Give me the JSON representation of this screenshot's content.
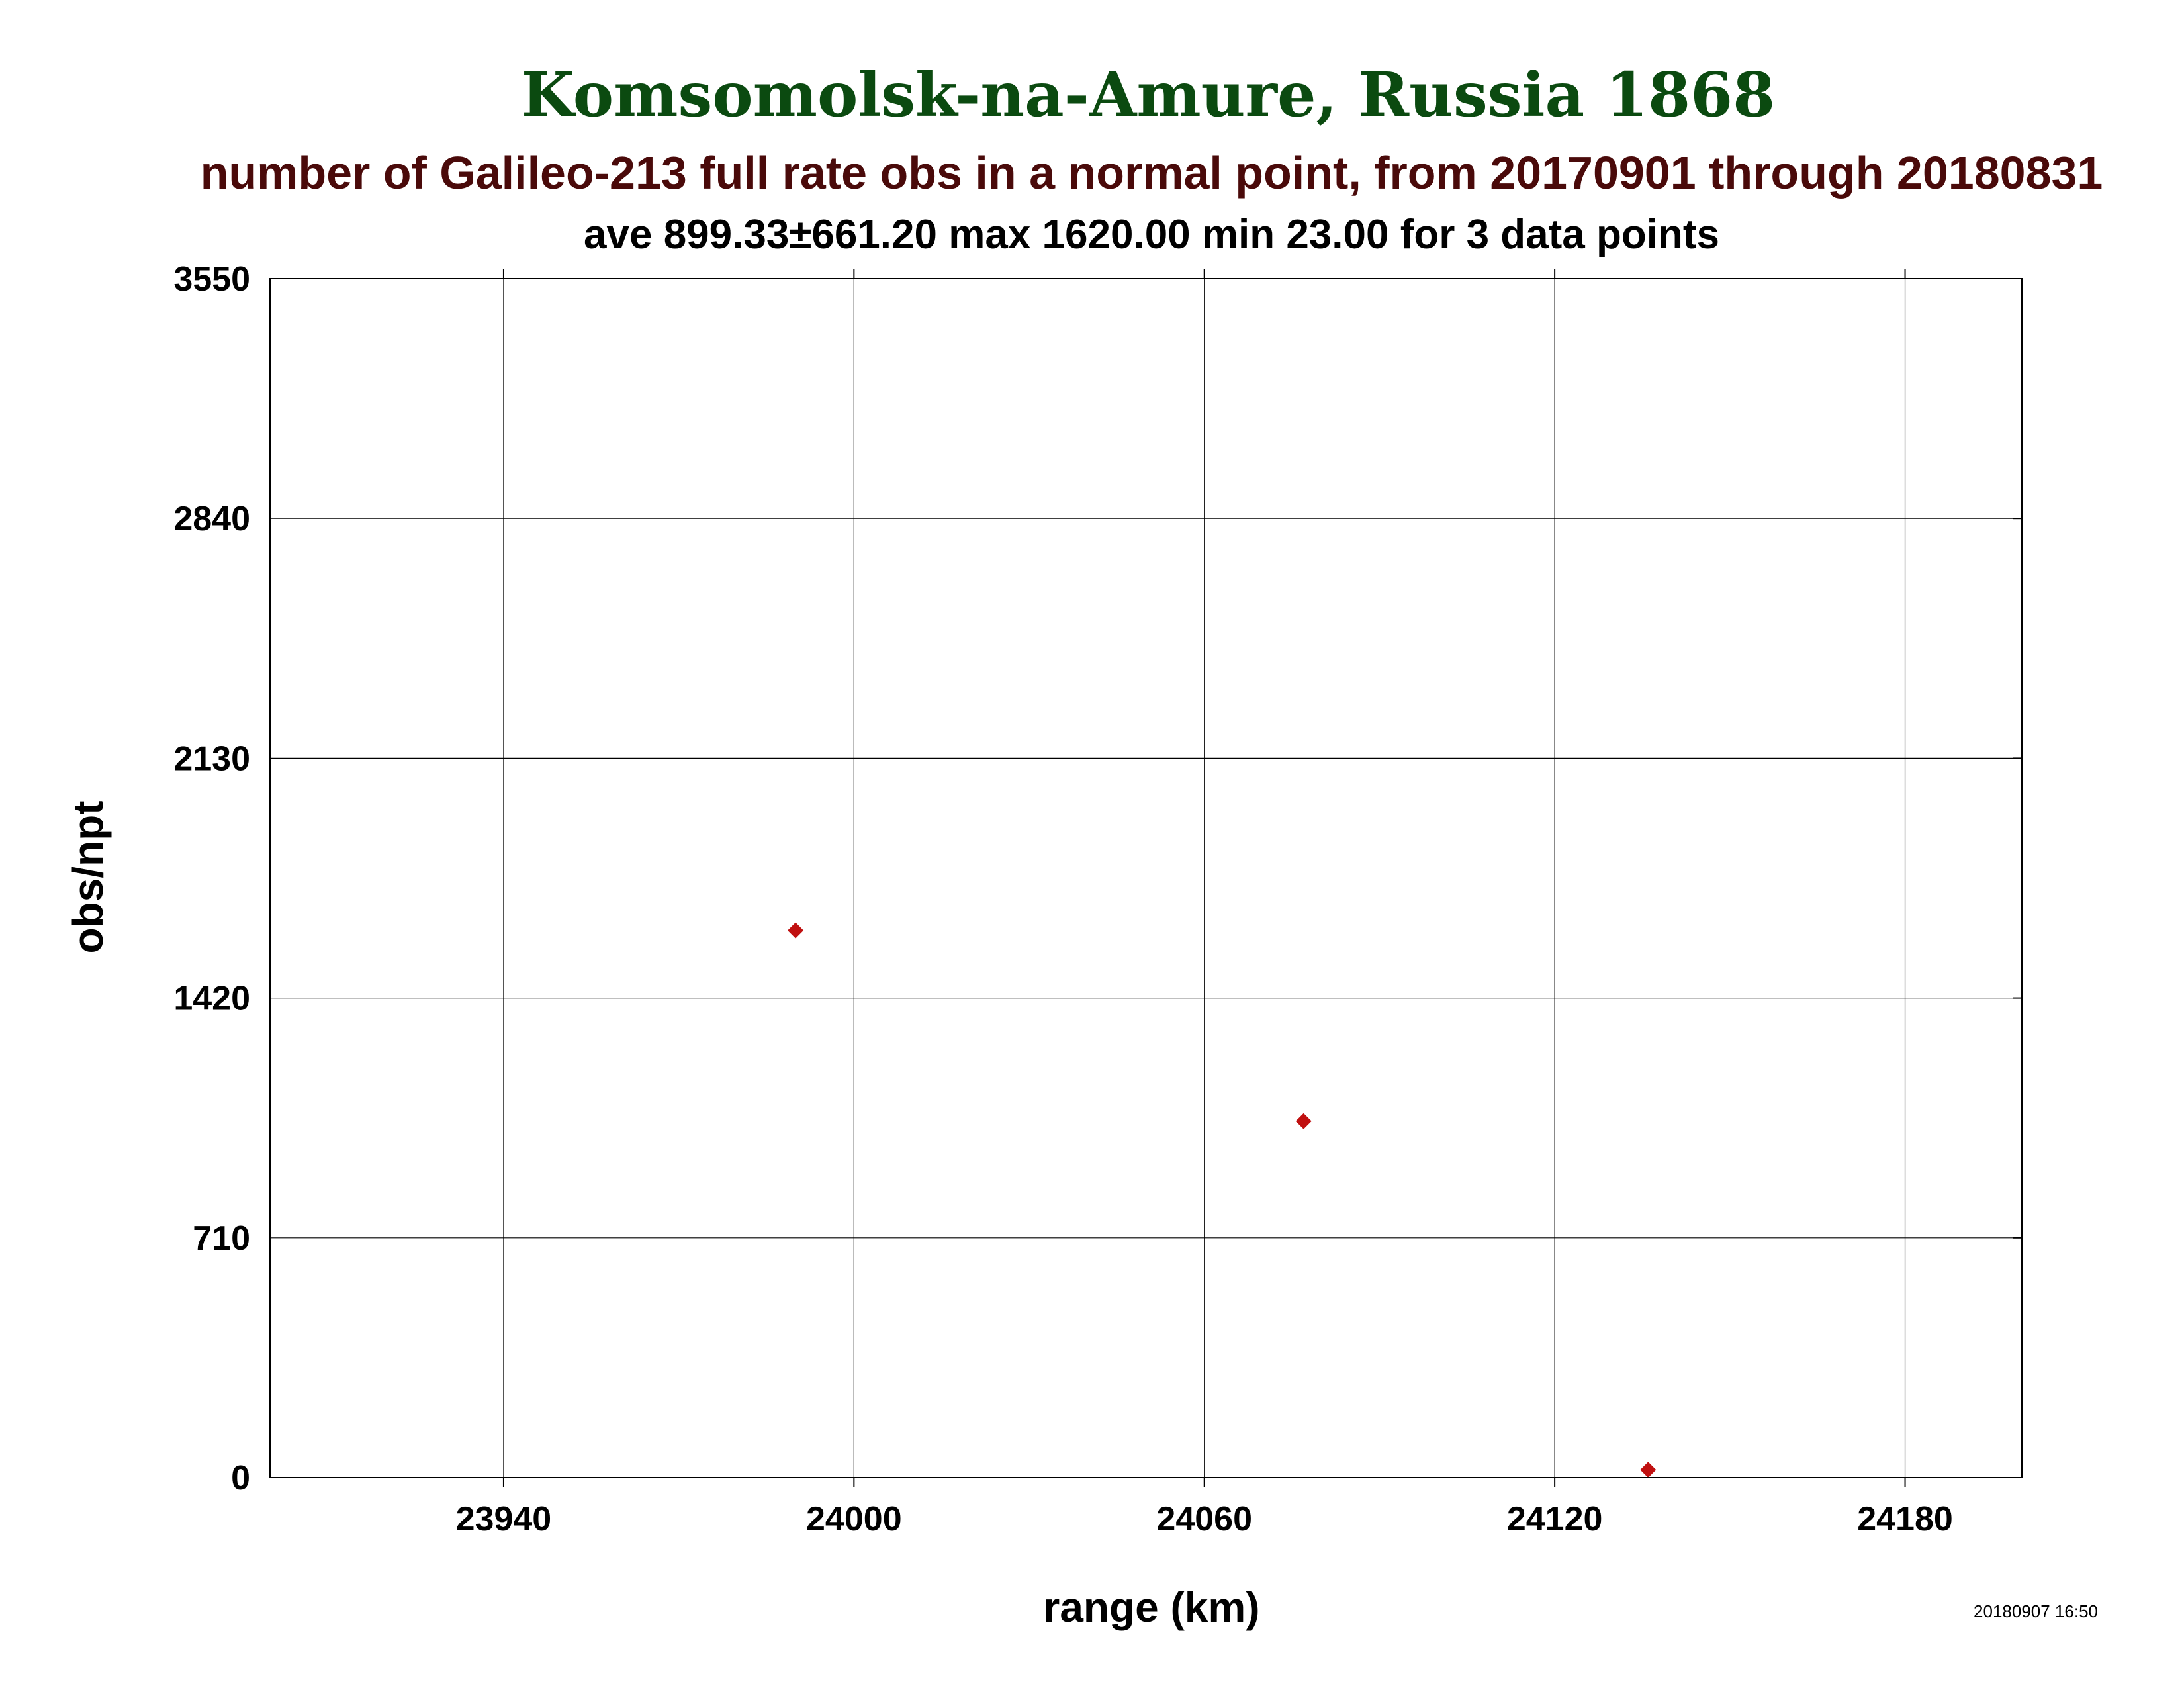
{
  "chart_data": {
    "type": "scatter",
    "title": "Komsomolsk-na-Amure, Russia 1868",
    "subtitle": "number of Galileo-213 full rate obs in a normal point, from 20170901 through 20180831",
    "stats_line": "ave 899.33±661.20 max 1620.00 min 23.00 for 3 data points",
    "xlabel": "range (km)",
    "ylabel": "obs/npt",
    "xlim": [
      23900,
      24200
    ],
    "ylim": [
      0,
      3550
    ],
    "x_ticks": [
      23940,
      24000,
      24060,
      24120,
      24180
    ],
    "y_ticks": [
      0,
      710,
      1420,
      2130,
      2840,
      3550
    ],
    "grid": true,
    "marker": "diamond",
    "marker_color": "#c01010",
    "points": [
      {
        "x": 23990,
        "y": 1620
      },
      {
        "x": 24077,
        "y": 1055
      },
      {
        "x": 24136,
        "y": 23
      }
    ],
    "timestamp": "20180907 16:50"
  }
}
